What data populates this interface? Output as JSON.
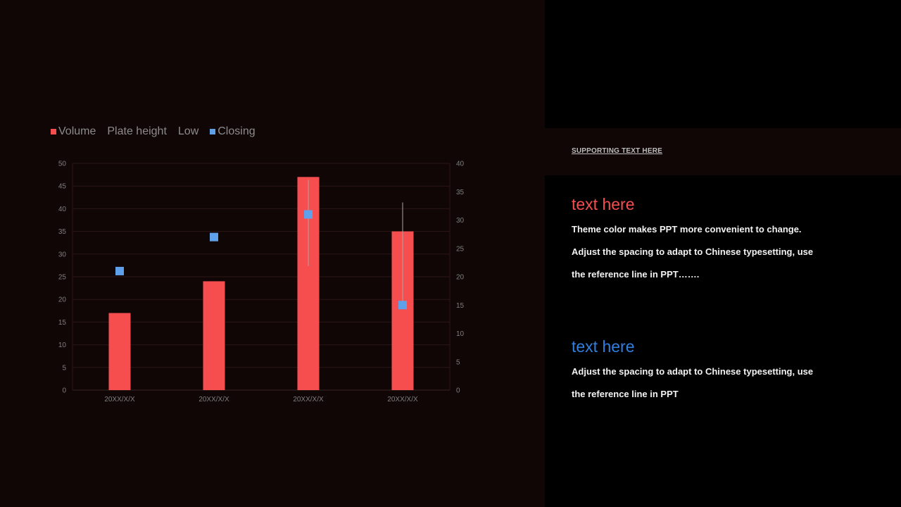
{
  "chart_data": {
    "type": "bar",
    "categories": [
      "20XX/X/X",
      "20XX/X/X",
      "20XX/X/X",
      "20XX/X/X"
    ],
    "legend": [
      {
        "name": "Volume",
        "color": "#f64e4f",
        "marker": "square"
      },
      {
        "name": "Plate height",
        "color": null,
        "marker": "none"
      },
      {
        "name": "Low",
        "color": null,
        "marker": "none"
      },
      {
        "name": "Closing",
        "color": "#5fa0ea",
        "marker": "square"
      }
    ],
    "series": [
      {
        "name": "Volume",
        "axis": "left",
        "values": [
          17,
          24,
          47,
          35
        ]
      },
      {
        "name": "Plate height",
        "axis": "right",
        "values": [
          13.9,
          25.1,
          37.1,
          33.1
        ]
      },
      {
        "name": "Low",
        "axis": "right",
        "values": [
          13.9,
          25.1,
          21.9,
          14.9
        ]
      },
      {
        "name": "Closing",
        "axis": "right",
        "values": [
          21,
          27,
          31,
          15
        ]
      }
    ],
    "ylim_left": [
      0,
      50
    ],
    "yticks_left": [
      0,
      5,
      10,
      15,
      20,
      25,
      30,
      35,
      40,
      45,
      50
    ],
    "ylim_right": [
      0,
      40
    ],
    "yticks_right": [
      0,
      5,
      10,
      15,
      20,
      25,
      30,
      35,
      40
    ],
    "grid": true,
    "legend_position": "top-left",
    "colors": {
      "bar": "#f64e4f",
      "marker": "#5fa0ea",
      "whisker": "#a6a6a6",
      "grid": "#2a1616",
      "tick_text": "#7f7f7f"
    }
  },
  "sidebar": {
    "supporting_text": "SUPPORTING TEXT HERE"
  },
  "block1": {
    "title": "text here",
    "title_color": "#f64e4f",
    "lines": [
      "Theme color makes PPT more convenient to change.",
      "Adjust the spacing to adapt to Chinese typesetting, use",
      "the reference line in PPT……."
    ]
  },
  "block2": {
    "title": "text here",
    "title_color": "#2f7fe0",
    "lines": [
      "Adjust the spacing to adapt to Chinese typesetting, use",
      "the reference line in PPT"
    ]
  }
}
